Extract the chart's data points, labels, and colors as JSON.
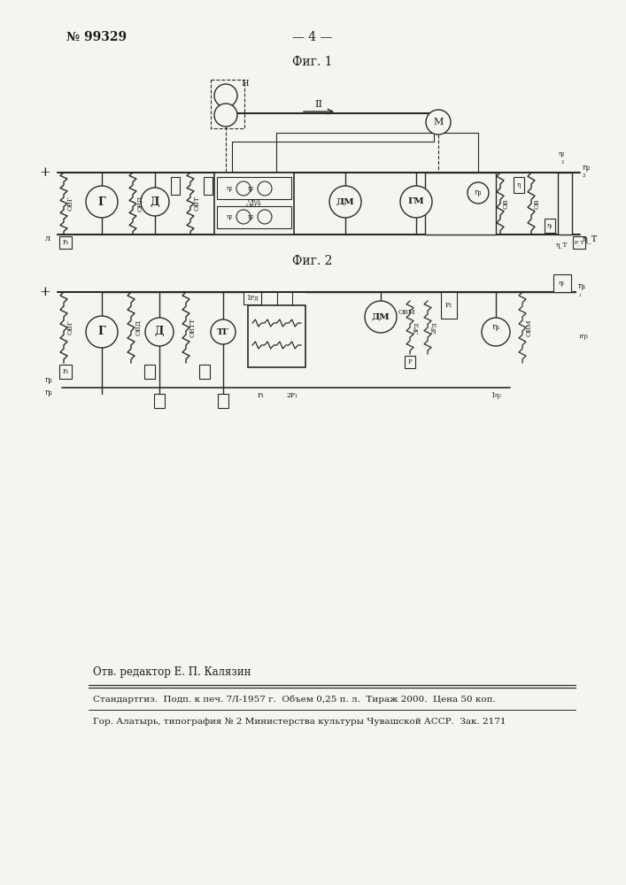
{
  "page_number": "№ 99329",
  "page_marker": "— 4 —",
  "fig1_label": "Фиг. 1",
  "fig2_label": "Фиг. 2",
  "footer_line1": "Отв. редактор Е. П. Калязин",
  "footer_line2": "Стандартгиз.  Подп. к печ. 7/І-1957 г.  Объем 0,25 п. л.  Тираж 2000.  Цена 50 коп.",
  "footer_line3": "Гор. Алатырь, типография № 2 Министерства культуры Чувашской АССР.  Зак. 2171",
  "bg_color": "#f5f5f0",
  "text_color": "#1a1a1a",
  "line_color": "#2a2a2a"
}
